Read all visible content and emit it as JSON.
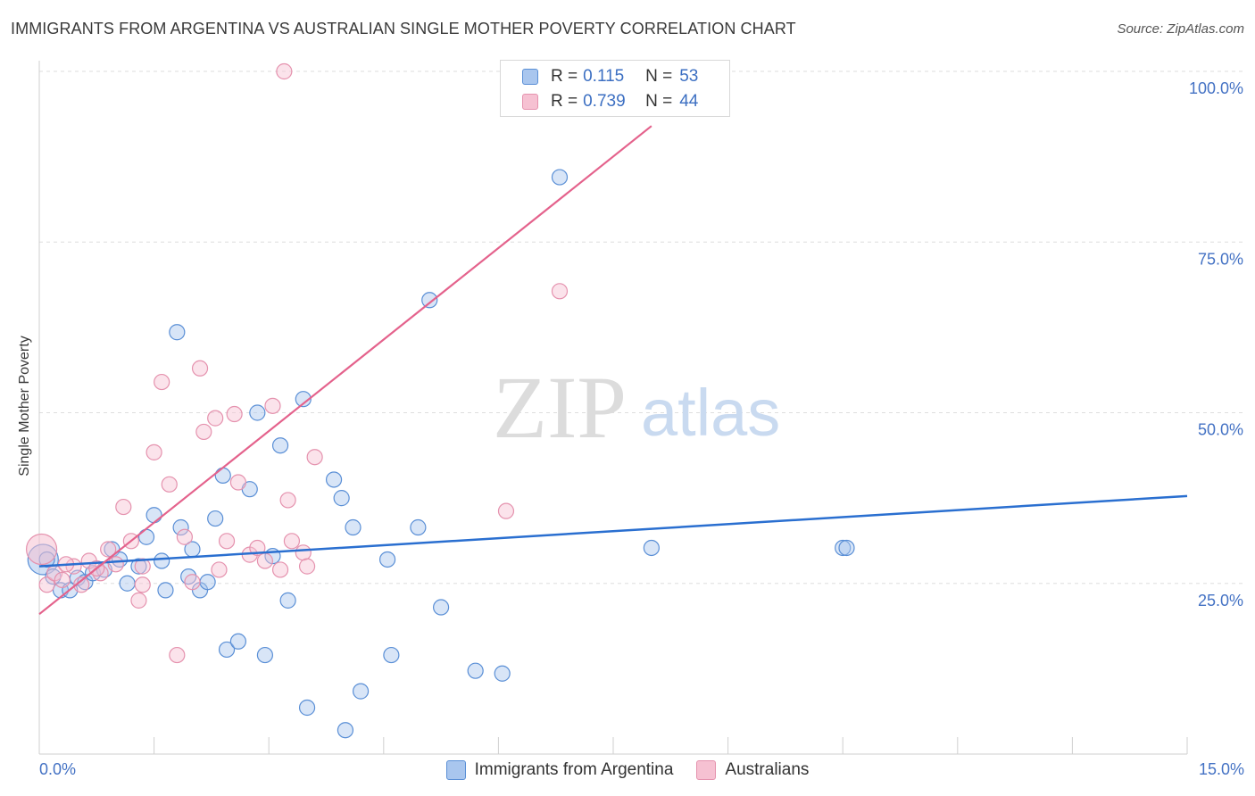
{
  "header": {
    "title": "IMMIGRANTS FROM ARGENTINA VS AUSTRALIAN SINGLE MOTHER POVERTY CORRELATION CHART",
    "source": "Source: ZipAtlas.com"
  },
  "watermark": {
    "zip": "ZIP",
    "atlas": "atlas"
  },
  "legend_top": {
    "rows": [
      {
        "r_label": "R =",
        "r_value": "0.115",
        "n_label": "N =",
        "n_value": "53"
      },
      {
        "r_label": "R =",
        "r_value": "0.739",
        "n_label": "N =",
        "n_value": "44"
      }
    ]
  },
  "legend_bottom": {
    "items": [
      "Immigrants from Argentina",
      "Australians"
    ]
  },
  "colors": {
    "blue_fill": "#a9c6ee",
    "blue_stroke": "#5a8fd6",
    "blue_line": "#2a6fd0",
    "pink_fill": "#f6c1d2",
    "pink_stroke": "#e592ae",
    "pink_line": "#e4628c",
    "tick_text": "#4472c4",
    "grid": "#dedede"
  },
  "chart_data": {
    "type": "scatter",
    "title": "IMMIGRANTS FROM ARGENTINA VS AUSTRALIAN SINGLE MOTHER POVERTY CORRELATION CHART",
    "xlabel": "",
    "ylabel": "Single Mother Poverty",
    "xlim": [
      0,
      15
    ],
    "ylim": [
      0,
      100
    ],
    "x_tick_labels": [
      "0.0%",
      "15.0%"
    ],
    "y_ticks": [
      25,
      50,
      75,
      100
    ],
    "y_tick_labels": [
      "25.0%",
      "50.0%",
      "75.0%",
      "100.0%"
    ],
    "grid": true,
    "legend_position": "bottom",
    "series": [
      {
        "name": "Immigrants from Argentina",
        "r": 0.115,
        "n": 53,
        "trendline": {
          "x": [
            0,
            15
          ],
          "y": [
            27.5,
            37.8
          ]
        },
        "points": [
          {
            "x": 0.05,
            "y": 28.5,
            "big": true
          },
          {
            "x": 0.1,
            "y": 28.5
          },
          {
            "x": 0.18,
            "y": 26
          },
          {
            "x": 0.28,
            "y": 24
          },
          {
            "x": 0.4,
            "y": 24
          },
          {
            "x": 0.5,
            "y": 25.8
          },
          {
            "x": 0.6,
            "y": 25.2
          },
          {
            "x": 0.7,
            "y": 26.5
          },
          {
            "x": 0.85,
            "y": 27
          },
          {
            "x": 0.95,
            "y": 30
          },
          {
            "x": 1.05,
            "y": 28.5
          },
          {
            "x": 1.15,
            "y": 25
          },
          {
            "x": 1.3,
            "y": 27.5
          },
          {
            "x": 1.4,
            "y": 31.8
          },
          {
            "x": 1.5,
            "y": 35
          },
          {
            "x": 1.6,
            "y": 28.3
          },
          {
            "x": 1.65,
            "y": 24
          },
          {
            "x": 1.8,
            "y": 61.8
          },
          {
            "x": 1.85,
            "y": 33.2
          },
          {
            "x": 1.95,
            "y": 26
          },
          {
            "x": 2.0,
            "y": 30
          },
          {
            "x": 2.1,
            "y": 24
          },
          {
            "x": 2.2,
            "y": 25.2
          },
          {
            "x": 2.3,
            "y": 34.5
          },
          {
            "x": 2.4,
            "y": 40.8
          },
          {
            "x": 2.45,
            "y": 15.3
          },
          {
            "x": 2.6,
            "y": 16.5
          },
          {
            "x": 2.75,
            "y": 38.8
          },
          {
            "x": 2.85,
            "y": 50
          },
          {
            "x": 2.95,
            "y": 14.5
          },
          {
            "x": 3.05,
            "y": 29
          },
          {
            "x": 3.15,
            "y": 45.2
          },
          {
            "x": 3.25,
            "y": 22.5
          },
          {
            "x": 3.45,
            "y": 52
          },
          {
            "x": 3.5,
            "y": 6.8
          },
          {
            "x": 3.85,
            "y": 40.2
          },
          {
            "x": 3.95,
            "y": 37.5
          },
          {
            "x": 4.0,
            "y": 3.5
          },
          {
            "x": 4.1,
            "y": 33.2
          },
          {
            "x": 4.2,
            "y": 9.2
          },
          {
            "x": 4.55,
            "y": 28.5
          },
          {
            "x": 4.6,
            "y": 14.5
          },
          {
            "x": 4.95,
            "y": 33.2
          },
          {
            "x": 5.1,
            "y": 66.5
          },
          {
            "x": 5.25,
            "y": 21.5
          },
          {
            "x": 5.7,
            "y": 12.2
          },
          {
            "x": 6.05,
            "y": 11.8
          },
          {
            "x": 6.8,
            "y": 84.5
          },
          {
            "x": 8.0,
            "y": 30.2
          },
          {
            "x": 10.5,
            "y": 30.2
          },
          {
            "x": 10.55,
            "y": 30.2
          }
        ]
      },
      {
        "name": "Australians",
        "r": 0.739,
        "n": 44,
        "trendline": {
          "x": [
            0,
            8.0
          ],
          "y": [
            20.5,
            92
          ]
        },
        "points": [
          {
            "x": 0.03,
            "y": 30,
            "big": true
          },
          {
            "x": 0.1,
            "y": 24.8
          },
          {
            "x": 0.2,
            "y": 26.5
          },
          {
            "x": 0.3,
            "y": 25.5
          },
          {
            "x": 0.45,
            "y": 27.5
          },
          {
            "x": 0.55,
            "y": 24.8
          },
          {
            "x": 0.65,
            "y": 28.3
          },
          {
            "x": 0.8,
            "y": 26.5
          },
          {
            "x": 0.9,
            "y": 30
          },
          {
            "x": 1.0,
            "y": 27.8
          },
          {
            "x": 1.1,
            "y": 36.2
          },
          {
            "x": 1.2,
            "y": 31.2
          },
          {
            "x": 1.3,
            "y": 22.5
          },
          {
            "x": 1.35,
            "y": 24.8
          },
          {
            "x": 1.5,
            "y": 44.2
          },
          {
            "x": 1.6,
            "y": 54.5
          },
          {
            "x": 1.7,
            "y": 39.5
          },
          {
            "x": 1.8,
            "y": 14.5
          },
          {
            "x": 1.9,
            "y": 31.8
          },
          {
            "x": 2.0,
            "y": 25.2
          },
          {
            "x": 2.1,
            "y": 56.5
          },
          {
            "x": 2.15,
            "y": 47.2
          },
          {
            "x": 2.3,
            "y": 49.2
          },
          {
            "x": 2.35,
            "y": 27
          },
          {
            "x": 2.45,
            "y": 31.2
          },
          {
            "x": 2.55,
            "y": 49.8
          },
          {
            "x": 2.6,
            "y": 39.8
          },
          {
            "x": 2.75,
            "y": 29.2
          },
          {
            "x": 2.85,
            "y": 30.2
          },
          {
            "x": 2.95,
            "y": 28.3
          },
          {
            "x": 3.05,
            "y": 51
          },
          {
            "x": 3.15,
            "y": 27
          },
          {
            "x": 3.25,
            "y": 37.2
          },
          {
            "x": 3.3,
            "y": 31.2
          },
          {
            "x": 3.45,
            "y": 29.5
          },
          {
            "x": 3.5,
            "y": 27.5
          },
          {
            "x": 3.6,
            "y": 43.5
          },
          {
            "x": 3.2,
            "y": 100
          },
          {
            "x": 6.1,
            "y": 35.6
          },
          {
            "x": 6.2,
            "y": 100
          },
          {
            "x": 6.8,
            "y": 67.8
          },
          {
            "x": 1.35,
            "y": 27.5
          },
          {
            "x": 0.75,
            "y": 27.2
          },
          {
            "x": 0.35,
            "y": 27.8
          }
        ]
      }
    ]
  }
}
